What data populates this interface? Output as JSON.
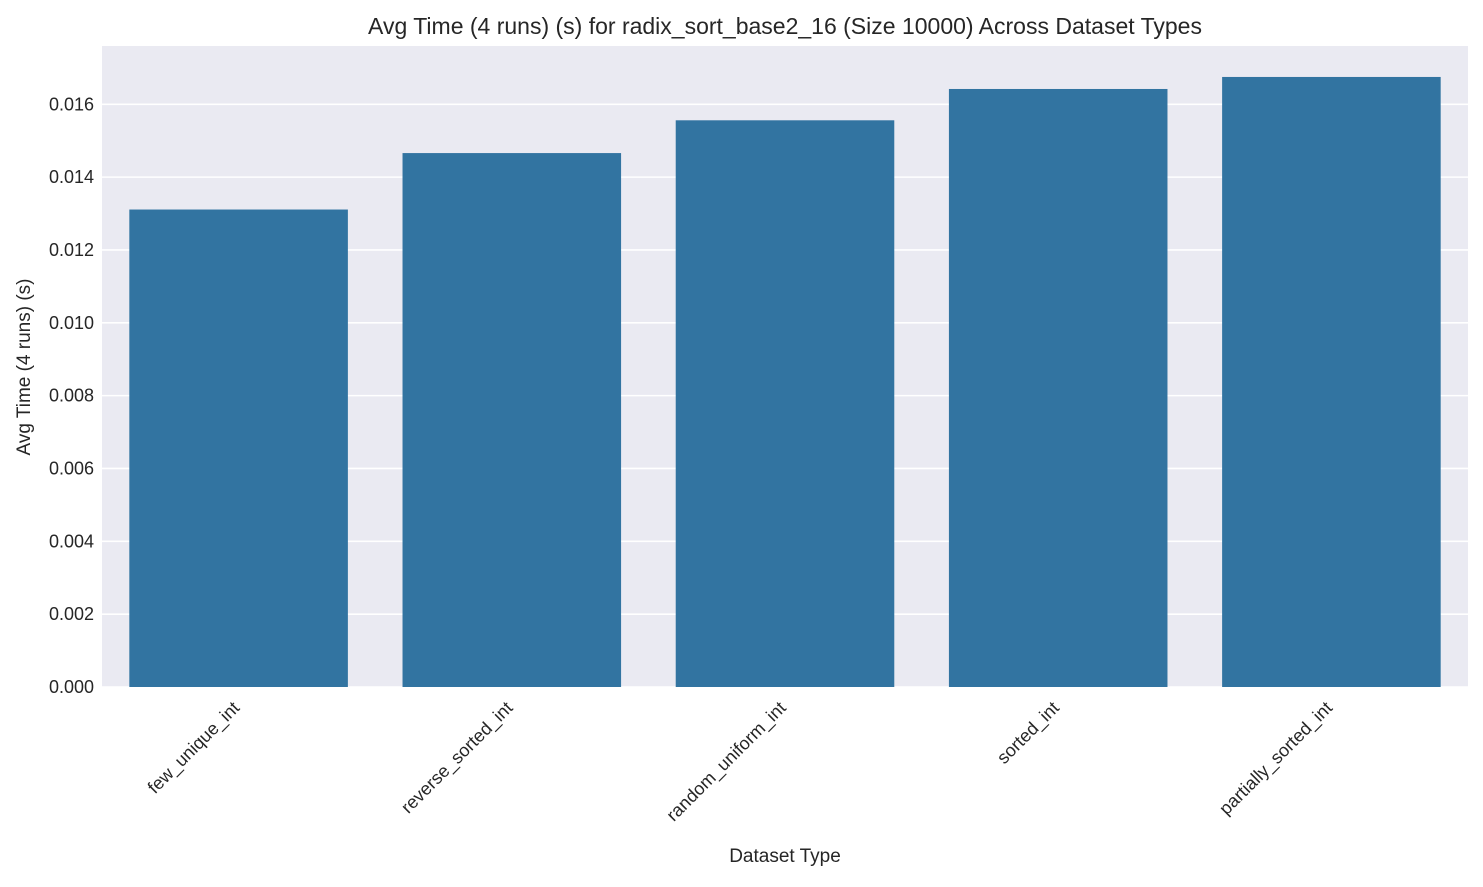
{
  "chart_data": {
    "type": "bar",
    "title": "Avg Time (4 runs) (s) for radix_sort_base2_16 (Size 10000) Across Dataset Types",
    "xlabel": "Dataset Type",
    "ylabel": "Avg Time (4 runs) (s)",
    "categories": [
      "few_unique_int",
      "reverse_sorted_int",
      "random_uniform_int",
      "sorted_int",
      "partially_sorted_int"
    ],
    "values": [
      0.01311,
      0.01466,
      0.01556,
      0.01642,
      0.01675
    ],
    "ylim": [
      0,
      0.0176
    ],
    "yticks": [
      "0.000",
      "0.002",
      "0.004",
      "0.006",
      "0.008",
      "0.010",
      "0.012",
      "0.014",
      "0.016"
    ],
    "grid": true,
    "colors": {
      "bar": "#3274a1",
      "plot_background": "#eaeaf2",
      "grid": "#ffffff"
    }
  }
}
